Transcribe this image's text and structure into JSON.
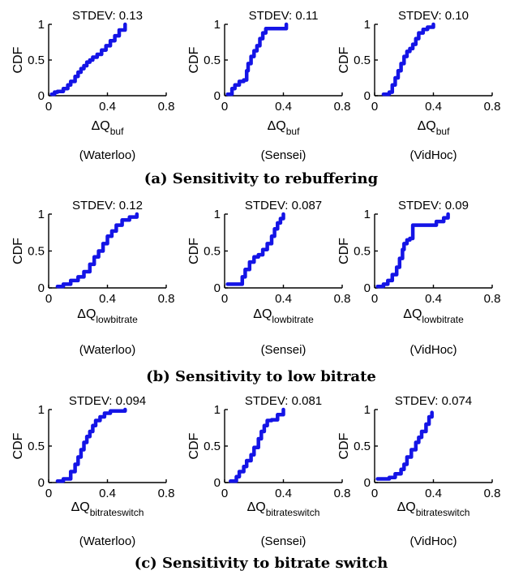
{
  "figure": {
    "captions": [
      "(a) Sensitivity to rebuffering",
      "(b) Sensitivity to low bitrate",
      "(c) Sensitivity to bitrate switch"
    ]
  },
  "chart_data": [
    {
      "type": "line",
      "title": "STDEV: 0.13",
      "ylabel": "CDF",
      "xlabel": "ΔQ",
      "xlabel_sub": "buf",
      "dataset": "(Waterloo)",
      "xlim": [
        0,
        0.8
      ],
      "ylim": [
        0,
        1
      ],
      "xticks": [
        "0",
        "0.4",
        "0.8"
      ],
      "yticks": [
        "0",
        "0.5",
        "1"
      ],
      "series": [
        {
          "color": "#1414e6",
          "x": [
            0.02,
            0.04,
            0.06,
            0.1,
            0.13,
            0.15,
            0.18,
            0.2,
            0.22,
            0.24,
            0.26,
            0.28,
            0.3,
            0.33,
            0.36,
            0.39,
            0.42,
            0.45,
            0.48,
            0.52
          ],
          "y": [
            0.02,
            0.05,
            0.06,
            0.1,
            0.15,
            0.2,
            0.27,
            0.33,
            0.38,
            0.42,
            0.47,
            0.5,
            0.54,
            0.58,
            0.64,
            0.7,
            0.77,
            0.84,
            0.92,
            1.0
          ]
        }
      ]
    },
    {
      "type": "line",
      "title": "STDEV: 0.11",
      "ylabel": "CDF",
      "xlabel": "ΔQ",
      "xlabel_sub": "buf",
      "dataset": "(Sensei)",
      "xlim": [
        0,
        0.8
      ],
      "ylim": [
        0,
        1
      ],
      "xticks": [
        "0",
        "0.4",
        "0.8"
      ],
      "yticks": [
        "0",
        "0.5",
        "1"
      ],
      "series": [
        {
          "color": "#1414e6",
          "x": [
            0.02,
            0.05,
            0.07,
            0.1,
            0.13,
            0.15,
            0.16,
            0.18,
            0.2,
            0.22,
            0.24,
            0.26,
            0.28,
            0.31,
            0.33,
            0.42
          ],
          "y": [
            0.02,
            0.1,
            0.15,
            0.2,
            0.22,
            0.35,
            0.45,
            0.55,
            0.63,
            0.7,
            0.8,
            0.88,
            0.94,
            0.94,
            0.94,
            1.0
          ]
        }
      ]
    },
    {
      "type": "line",
      "title": "STDEV: 0.10",
      "ylabel": "CDF",
      "xlabel": "ΔQ",
      "xlabel_sub": "buf",
      "dataset": "(VidHoc)",
      "xlim": [
        0,
        0.8
      ],
      "ylim": [
        0,
        1
      ],
      "xticks": [
        "0",
        "0.4",
        "0.8"
      ],
      "yticks": [
        "0",
        "0.5",
        "1"
      ],
      "series": [
        {
          "color": "#1414e6",
          "x": [
            0.06,
            0.1,
            0.12,
            0.14,
            0.16,
            0.18,
            0.2,
            0.22,
            0.24,
            0.26,
            0.28,
            0.3,
            0.33,
            0.36,
            0.4
          ],
          "y": [
            0.02,
            0.05,
            0.15,
            0.25,
            0.35,
            0.45,
            0.55,
            0.62,
            0.66,
            0.72,
            0.8,
            0.88,
            0.93,
            0.96,
            1.0
          ]
        }
      ]
    },
    {
      "type": "line",
      "title": "STDEV: 0.12",
      "ylabel": "CDF",
      "xlabel": "ΔQ",
      "xlabel_sub": "lowbitrate",
      "dataset": "(Waterloo)",
      "xlim": [
        0,
        0.8
      ],
      "ylim": [
        0,
        1
      ],
      "xticks": [
        "0",
        "0.4",
        "0.8"
      ],
      "yticks": [
        "0",
        "0.5",
        "1"
      ],
      "series": [
        {
          "color": "#1414e6",
          "x": [
            0.06,
            0.1,
            0.15,
            0.2,
            0.24,
            0.28,
            0.31,
            0.34,
            0.37,
            0.4,
            0.43,
            0.46,
            0.5,
            0.55,
            0.6
          ],
          "y": [
            0.02,
            0.05,
            0.1,
            0.15,
            0.22,
            0.32,
            0.42,
            0.5,
            0.6,
            0.7,
            0.77,
            0.85,
            0.92,
            0.96,
            1.0
          ]
        }
      ]
    },
    {
      "type": "line",
      "title": "STDEV: 0.087",
      "ylabel": "CDF",
      "xlabel": "ΔQ",
      "xlabel_sub": "lowbitrate",
      "dataset": "(Sensei)",
      "xlim": [
        0,
        0.8
      ],
      "ylim": [
        0,
        1
      ],
      "xticks": [
        "0",
        "0.4",
        "0.8"
      ],
      "yticks": [
        "0",
        "0.5",
        "1"
      ],
      "series": [
        {
          "color": "#1414e6",
          "x": [
            0.02,
            0.1,
            0.12,
            0.14,
            0.17,
            0.2,
            0.23,
            0.26,
            0.29,
            0.32,
            0.34,
            0.36,
            0.38,
            0.4
          ],
          "y": [
            0.05,
            0.05,
            0.15,
            0.25,
            0.35,
            0.42,
            0.45,
            0.52,
            0.6,
            0.7,
            0.8,
            0.88,
            0.94,
            1.0
          ]
        }
      ]
    },
    {
      "type": "line",
      "title": "STDEV: 0.09",
      "ylabel": "CDF",
      "xlabel": "ΔQ",
      "xlabel_sub": "lowbitrate",
      "dataset": "(VidHoc)",
      "xlim": [
        0,
        0.8
      ],
      "ylim": [
        0,
        1
      ],
      "xticks": [
        "0",
        "0.4",
        "0.8"
      ],
      "yticks": [
        "0",
        "0.5",
        "1"
      ],
      "series": [
        {
          "color": "#1414e6",
          "x": [
            0.02,
            0.06,
            0.09,
            0.12,
            0.15,
            0.17,
            0.19,
            0.2,
            0.22,
            0.24,
            0.26,
            0.3,
            0.38,
            0.42,
            0.47,
            0.5
          ],
          "y": [
            0.02,
            0.05,
            0.1,
            0.18,
            0.28,
            0.4,
            0.52,
            0.6,
            0.65,
            0.67,
            0.85,
            0.85,
            0.85,
            0.9,
            0.95,
            1.0
          ]
        }
      ]
    },
    {
      "type": "line",
      "title": "STDEV: 0.094",
      "ylabel": "CDF",
      "xlabel": "ΔQ",
      "xlabel_sub": "bitrateswitch",
      "dataset": "(Waterloo)",
      "xlim": [
        0,
        0.8
      ],
      "ylim": [
        0,
        1
      ],
      "xticks": [
        "0",
        "0.4",
        "0.8"
      ],
      "yticks": [
        "0",
        "0.5",
        "1"
      ],
      "series": [
        {
          "color": "#1414e6",
          "x": [
            0.06,
            0.1,
            0.15,
            0.18,
            0.2,
            0.22,
            0.24,
            0.26,
            0.28,
            0.3,
            0.32,
            0.35,
            0.38,
            0.42,
            0.52
          ],
          "y": [
            0.02,
            0.05,
            0.15,
            0.25,
            0.35,
            0.45,
            0.55,
            0.63,
            0.7,
            0.78,
            0.85,
            0.9,
            0.95,
            0.98,
            1.0
          ]
        }
      ]
    },
    {
      "type": "line",
      "title": "STDEV: 0.081",
      "ylabel": "CDF",
      "xlabel": "ΔQ",
      "xlabel_sub": "bitrateswitch",
      "dataset": "(Sensei)",
      "xlim": [
        0,
        0.8
      ],
      "ylim": [
        0,
        1
      ],
      "xticks": [
        "0",
        "0.4",
        "0.8"
      ],
      "yticks": [
        "0",
        "0.5",
        "1"
      ],
      "series": [
        {
          "color": "#1414e6",
          "x": [
            0.04,
            0.08,
            0.1,
            0.13,
            0.15,
            0.18,
            0.2,
            0.23,
            0.25,
            0.27,
            0.29,
            0.32,
            0.36,
            0.4
          ],
          "y": [
            0.02,
            0.08,
            0.15,
            0.22,
            0.3,
            0.38,
            0.48,
            0.6,
            0.7,
            0.78,
            0.85,
            0.86,
            0.93,
            1.0
          ]
        }
      ]
    },
    {
      "type": "line",
      "title": "STDEV: 0.074",
      "ylabel": "CDF",
      "xlabel": "ΔQ",
      "xlabel_sub": "bitrateswitch",
      "dataset": "(VidHoc)",
      "xlim": [
        0,
        0.8
      ],
      "ylim": [
        0,
        1
      ],
      "xticks": [
        "0",
        "0.4",
        "0.8"
      ],
      "yticks": [
        "0",
        "0.5",
        "1"
      ],
      "series": [
        {
          "color": "#1414e6",
          "x": [
            0.02,
            0.05,
            0.1,
            0.14,
            0.18,
            0.2,
            0.22,
            0.25,
            0.28,
            0.3,
            0.32,
            0.35,
            0.37,
            0.39
          ],
          "y": [
            0.05,
            0.05,
            0.07,
            0.12,
            0.18,
            0.25,
            0.35,
            0.45,
            0.55,
            0.62,
            0.7,
            0.8,
            0.9,
            0.96
          ]
        }
      ]
    }
  ]
}
